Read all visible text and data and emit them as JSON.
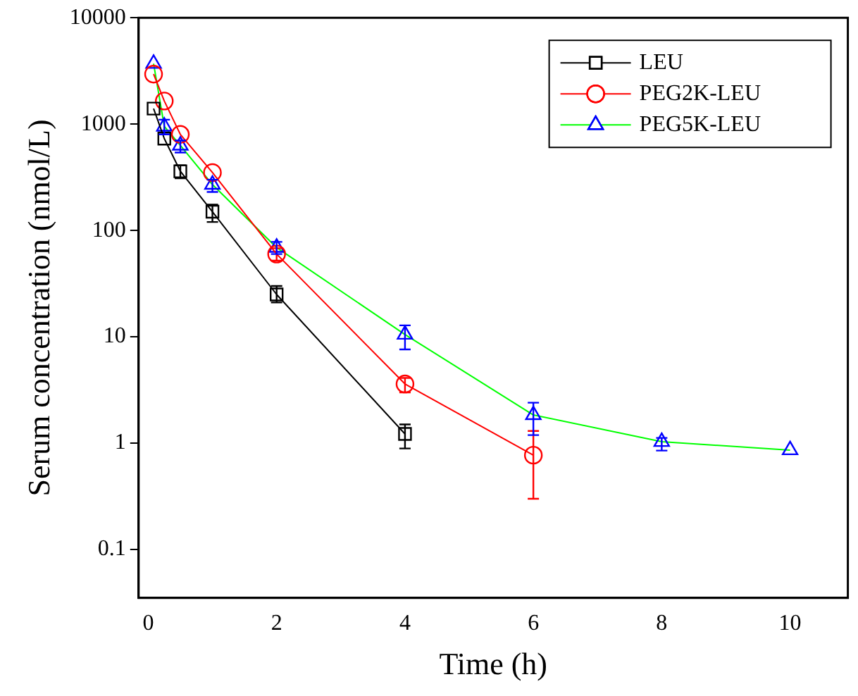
{
  "chart_data": {
    "type": "line",
    "xlabel": "Time (h)",
    "ylabel": "Serum concentration (nmol/L)",
    "log": "y",
    "xlim": [
      -0.15,
      10.9
    ],
    "xticks": [
      0,
      2,
      4,
      6,
      8,
      10
    ],
    "ylim": [
      0.035,
      10000
    ],
    "yticks": [
      0.1,
      1,
      10,
      100,
      1000,
      10000
    ],
    "legend": "top right",
    "grid": false,
    "line_style": "solid",
    "series": [
      {
        "name": "LEU",
        "color": "#000000",
        "marker": "square",
        "x": [
          0.083,
          0.25,
          0.5,
          1,
          2,
          4
        ],
        "values": [
          1400,
          730,
          360,
          150,
          25,
          1.22
        ],
        "errors": [
          null,
          null,
          [
            310,
            410
          ],
          [
            120,
            175
          ],
          [
            21,
            30
          ],
          [
            0.89,
            1.5
          ]
        ]
      },
      {
        "name": "PEG2K-LEU",
        "color": "#ff0000",
        "marker": "circle",
        "x": [
          0.083,
          0.25,
          0.5,
          1,
          2,
          4,
          6
        ],
        "values": [
          2950,
          1650,
          800,
          350,
          60,
          3.6,
          0.77
        ],
        "errors": [
          null,
          null,
          null,
          null,
          [
            52,
            68
          ],
          [
            3.0,
            4.1
          ],
          [
            0.3,
            1.3
          ]
        ]
      },
      {
        "name": "PEG5K-LEU",
        "color": "#00ff00",
        "colors": [
          "#0000ff",
          "#0000ff",
          "#0000ff",
          "#0000ff",
          "#0000ff",
          "#0000ff",
          "#0000ff",
          "#0000ff",
          "#0000ff"
        ],
        "marker": "triangle",
        "x": [
          0.083,
          0.25,
          0.5,
          1,
          2,
          4,
          6,
          8,
          10
        ],
        "values": [
          3700,
          950,
          630,
          270,
          69,
          10.5,
          1.84,
          1.03,
          0.86
        ],
        "errors": [
          null,
          [
            800,
            1100
          ],
          [
            540,
            700
          ],
          [
            230,
            300
          ],
          [
            60,
            78
          ],
          [
            7.6,
            12.8
          ],
          [
            1.19,
            2.4
          ],
          [
            0.85,
            1.12
          ],
          null
        ]
      }
    ]
  }
}
